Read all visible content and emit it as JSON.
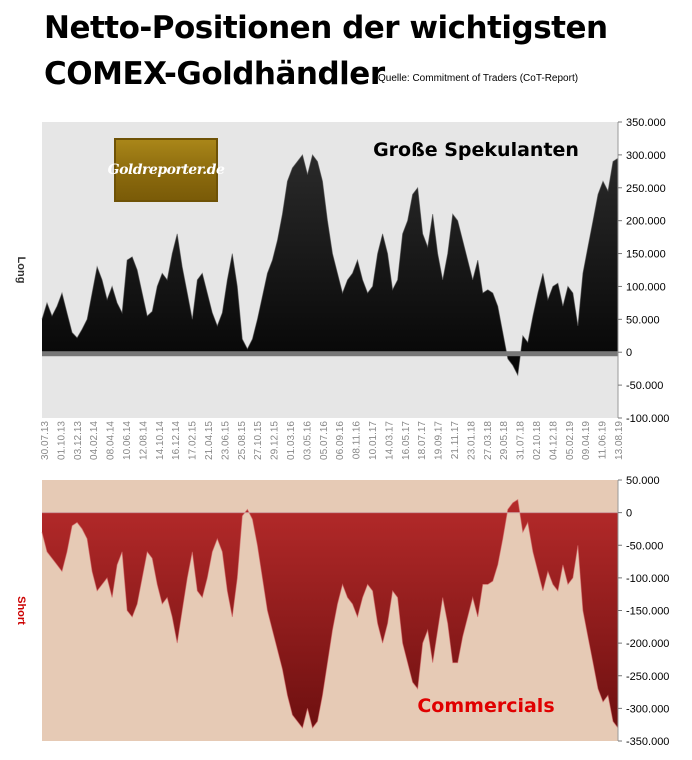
{
  "header": {
    "title_line1": "Netto-Positionen der wichtigsten",
    "title_line2": "COMEX-Goldhändler",
    "source": "Quelle: Commitment of Traders (CoT-Report)"
  },
  "logo": {
    "text": "Goldreporter.de"
  },
  "chart_data": [
    {
      "type": "area",
      "title": "Große Spekulanten",
      "ylabel": "Long",
      "ylim": [
        -100000,
        350000
      ],
      "yticks": [
        -100000,
        -50000,
        0,
        50000,
        100000,
        150000,
        200000,
        250000,
        300000,
        350000
      ],
      "ytick_labels": [
        "-100.000",
        "-50.000",
        "0",
        "50.000",
        "100.000",
        "150.000",
        "200.000",
        "250.000",
        "300.000",
        "350.000"
      ],
      "xtick_labels": [
        "30.07.13",
        "01.10.13",
        "03.12.13",
        "04.02.14",
        "08.04.14",
        "10.06.14",
        "12.08.14",
        "14.10.14",
        "16.12.14",
        "17.02.15",
        "21.04.15",
        "23.06.15",
        "25.08.15",
        "27.10.15",
        "29.12.15",
        "01.03.16",
        "03.05.16",
        "05.07.16",
        "06.09.16",
        "08.11.16",
        "10.01.17",
        "14.03.17",
        "16.05.17",
        "18.07.17",
        "19.09.17",
        "21.11.17",
        "23.01.18",
        "27.03.18",
        "29.05.18",
        "31.07.18",
        "02.10.18",
        "04.12.18",
        "05.02.19",
        "09.04.19",
        "11.06.19",
        "13.08.19"
      ],
      "color": "#1a1a1a",
      "background": "#e6e6e6",
      "values": [
        50000,
        75000,
        55000,
        70000,
        90000,
        60000,
        30000,
        22000,
        35000,
        50000,
        90000,
        130000,
        110000,
        80000,
        100000,
        75000,
        60000,
        140000,
        145000,
        125000,
        90000,
        55000,
        62000,
        100000,
        120000,
        110000,
        150000,
        180000,
        130000,
        90000,
        50000,
        110000,
        120000,
        90000,
        60000,
        40000,
        60000,
        110000,
        150000,
        100000,
        20000,
        5000,
        20000,
        50000,
        85000,
        120000,
        140000,
        170000,
        210000,
        260000,
        280000,
        290000,
        300000,
        270000,
        300000,
        290000,
        260000,
        200000,
        150000,
        120000,
        90000,
        110000,
        120000,
        140000,
        110000,
        90000,
        100000,
        150000,
        180000,
        150000,
        95000,
        110000,
        180000,
        200000,
        240000,
        250000,
        180000,
        160000,
        210000,
        150000,
        110000,
        150000,
        210000,
        200000,
        170000,
        140000,
        110000,
        140000,
        90000,
        95000,
        90000,
        70000,
        30000,
        -10000,
        -20000,
        -35000,
        25000,
        15000,
        55000,
        90000,
        120000,
        80000,
        100000,
        105000,
        70000,
        100000,
        90000,
        40000,
        120000,
        160000,
        200000,
        240000,
        260000,
        245000,
        290000,
        295000
      ],
      "series_annotation": "Große Spekulanten"
    },
    {
      "type": "area",
      "title": "Commercials",
      "ylabel": "Short",
      "ylim": [
        -350000,
        50000
      ],
      "yticks": [
        -350000,
        -300000,
        -250000,
        -200000,
        -150000,
        -100000,
        -50000,
        0,
        50000
      ],
      "ytick_labels": [
        "-350.000",
        "-300.000",
        "-250.000",
        "-200.000",
        "-150.000",
        "-100.000",
        "-50.000",
        "0",
        "50.000"
      ],
      "color": "#a02020",
      "background": "#e6cab5",
      "values": [
        -30000,
        -60000,
        -70000,
        -80000,
        -90000,
        -60000,
        -20000,
        -15000,
        -25000,
        -40000,
        -90000,
        -120000,
        -110000,
        -100000,
        -130000,
        -80000,
        -60000,
        -150000,
        -160000,
        -140000,
        -100000,
        -60000,
        -70000,
        -110000,
        -140000,
        -130000,
        -160000,
        -200000,
        -150000,
        -100000,
        -60000,
        -120000,
        -130000,
        -100000,
        -60000,
        -40000,
        -60000,
        -120000,
        -160000,
        -100000,
        -5000,
        5000,
        -10000,
        -50000,
        -100000,
        -150000,
        -180000,
        -210000,
        -240000,
        -280000,
        -310000,
        -320000,
        -330000,
        -300000,
        -330000,
        -320000,
        -280000,
        -230000,
        -180000,
        -140000,
        -110000,
        -130000,
        -140000,
        -160000,
        -130000,
        -110000,
        -120000,
        -170000,
        -200000,
        -170000,
        -120000,
        -130000,
        -200000,
        -230000,
        -260000,
        -270000,
        -200000,
        -180000,
        -230000,
        -180000,
        -130000,
        -170000,
        -230000,
        -230000,
        -190000,
        -160000,
        -130000,
        -160000,
        -110000,
        -110000,
        -105000,
        -80000,
        -40000,
        5000,
        15000,
        20000,
        -30000,
        -15000,
        -60000,
        -90000,
        -120000,
        -90000,
        -110000,
        -120000,
        -80000,
        -110000,
        -100000,
        -50000,
        -150000,
        -190000,
        -230000,
        -270000,
        -290000,
        -280000,
        -320000,
        -330000
      ],
      "series_annotation": "Commercials"
    }
  ]
}
